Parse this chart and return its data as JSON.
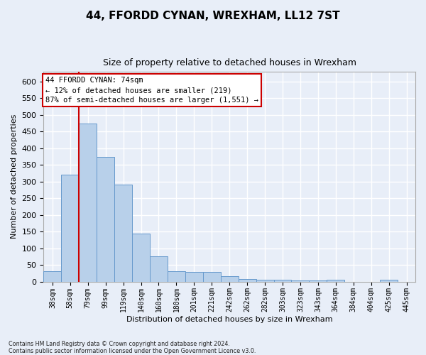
{
  "title": "44, FFORDD CYNAN, WREXHAM, LL12 7ST",
  "subtitle": "Size of property relative to detached houses in Wrexham",
  "xlabel": "Distribution of detached houses by size in Wrexham",
  "ylabel": "Number of detached properties",
  "bar_values": [
    32,
    320,
    475,
    375,
    290,
    143,
    76,
    32,
    29,
    28,
    16,
    8,
    6,
    5,
    4,
    4,
    5,
    0,
    0,
    6,
    0
  ],
  "bar_labels": [
    "38sqm",
    "58sqm",
    "79sqm",
    "99sqm",
    "119sqm",
    "140sqm",
    "160sqm",
    "180sqm",
    "201sqm",
    "221sqm",
    "242sqm",
    "262sqm",
    "282sqm",
    "303sqm",
    "323sqm",
    "343sqm",
    "364sqm",
    "384sqm",
    "404sqm",
    "425sqm",
    "445sqm"
  ],
  "bar_color": "#b8d0ea",
  "bar_edge_color": "#6699cc",
  "vline_color": "#cc0000",
  "vline_x": 1.5,
  "annotation_line1": "44 FFORDD CYNAN: 74sqm",
  "annotation_line2": "← 12% of detached houses are smaller (219)",
  "annotation_line3": "87% of semi-detached houses are larger (1,551) →",
  "annotation_box_fc": "#ffffff",
  "annotation_box_ec": "#cc0000",
  "ylim": [
    0,
    630
  ],
  "yticks": [
    0,
    50,
    100,
    150,
    200,
    250,
    300,
    350,
    400,
    450,
    500,
    550,
    600
  ],
  "footer_line1": "Contains HM Land Registry data © Crown copyright and database right 2024.",
  "footer_line2": "Contains public sector information licensed under the Open Government Licence v3.0.",
  "bg_color": "#e8eef8",
  "plot_bg_color": "#e8eef8",
  "grid_color": "#ffffff",
  "title_fontsize": 11,
  "subtitle_fontsize": 9,
  "ylabel_fontsize": 8,
  "xlabel_fontsize": 8,
  "ytick_fontsize": 8,
  "xtick_fontsize": 7
}
